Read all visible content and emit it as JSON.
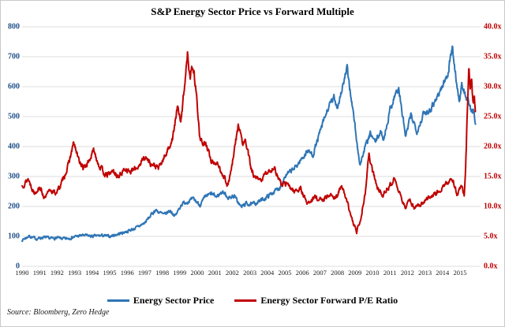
{
  "title": "S&P Energy Sector Price vs Forward Multiple",
  "source": "Source: Bloomberg, Zero Hedge",
  "legend": [
    {
      "label": "Energy Sector Price",
      "color": "#2E75B6"
    },
    {
      "label": "Energy Sector Forward P/E Ratio",
      "color": "#C00000"
    }
  ],
  "colors": {
    "left_axis_text": "#1F5088",
    "right_axis_text": "#C00000",
    "gridline": "#DCDCDC",
    "price_line": "#2E75B6",
    "pe_line": "#C00000"
  },
  "chart_data": {
    "type": "line",
    "title": "S&P Energy Sector Price vs Forward Multiple",
    "x_tick_labels": [
      "1990",
      "1991",
      "1992",
      "1993",
      "1994",
      "1995",
      "1996",
      "1997",
      "1998",
      "1999",
      "2000",
      "2001",
      "2002",
      "2003",
      "2004",
      "2005",
      "2006",
      "2007",
      "2008",
      "2009",
      "2010",
      "2011",
      "2012",
      "2013",
      "2014",
      "2015"
    ],
    "left_axis": {
      "tick_labels_top_to_bottom": [
        "800",
        "700",
        "600",
        "500",
        "400",
        "300",
        "200",
        "100",
        "0"
      ],
      "range": [
        0,
        800
      ]
    },
    "right_axis": {
      "tick_labels_top_to_bottom": [
        "40.0x",
        "35.0x",
        "30.0x",
        "25.0x",
        "20.0x",
        "15.0x",
        "10.0x",
        "5.0x",
        "0.0x"
      ],
      "range": [
        0,
        40
      ]
    },
    "x_range": [
      1990,
      2016
    ],
    "grid": "horizontal-only",
    "legend_position": "bottom-center",
    "series": [
      {
        "name": "Energy Sector Price",
        "axis": "left",
        "color": "#2E75B6",
        "points": [
          [
            1990.0,
            88
          ],
          [
            1990.4,
            101
          ],
          [
            1990.8,
            92
          ],
          [
            1991.2,
            97
          ],
          [
            1991.6,
            93
          ],
          [
            1992.0,
            95
          ],
          [
            1992.5,
            91
          ],
          [
            1993.0,
            99
          ],
          [
            1993.5,
            104
          ],
          [
            1994.0,
            100
          ],
          [
            1994.5,
            103
          ],
          [
            1995.0,
            100
          ],
          [
            1995.5,
            108
          ],
          [
            1996.0,
            117
          ],
          [
            1996.5,
            128
          ],
          [
            1997.0,
            145
          ],
          [
            1997.6,
            188
          ],
          [
            1998.1,
            172
          ],
          [
            1998.45,
            186
          ],
          [
            1998.75,
            168
          ],
          [
            1999.1,
            208
          ],
          [
            1999.5,
            218
          ],
          [
            1999.8,
            224
          ],
          [
            2000.15,
            205
          ],
          [
            2000.5,
            234
          ],
          [
            2000.8,
            242
          ],
          [
            2001.1,
            232
          ],
          [
            2001.45,
            250
          ],
          [
            2001.8,
            228
          ],
          [
            2002.1,
            236
          ],
          [
            2002.5,
            198
          ],
          [
            2002.8,
            210
          ],
          [
            2003.1,
            206
          ],
          [
            2003.5,
            216
          ],
          [
            2003.9,
            228
          ],
          [
            2004.3,
            246
          ],
          [
            2004.7,
            262
          ],
          [
            2005.0,
            300
          ],
          [
            2005.6,
            330
          ],
          [
            2006.0,
            362
          ],
          [
            2006.3,
            386
          ],
          [
            2006.6,
            372
          ],
          [
            2007.1,
            465
          ],
          [
            2007.5,
            532
          ],
          [
            2007.8,
            562
          ],
          [
            2008.0,
            532
          ],
          [
            2008.35,
            612
          ],
          [
            2008.55,
            660
          ],
          [
            2008.8,
            558
          ],
          [
            2009.0,
            470
          ],
          [
            2009.15,
            392
          ],
          [
            2009.3,
            340
          ],
          [
            2009.6,
            402
          ],
          [
            2009.9,
            442
          ],
          [
            2010.15,
            414
          ],
          [
            2010.45,
            448
          ],
          [
            2010.65,
            426
          ],
          [
            2011.0,
            522
          ],
          [
            2011.3,
            576
          ],
          [
            2011.5,
            590
          ],
          [
            2011.9,
            432
          ],
          [
            2012.2,
            506
          ],
          [
            2012.55,
            452
          ],
          [
            2012.9,
            506
          ],
          [
            2013.3,
            526
          ],
          [
            2013.6,
            556
          ],
          [
            2014.0,
            602
          ],
          [
            2014.3,
            642
          ],
          [
            2014.55,
            734
          ],
          [
            2014.75,
            640
          ],
          [
            2014.95,
            552
          ],
          [
            2015.1,
            600
          ],
          [
            2015.3,
            572
          ],
          [
            2015.5,
            546
          ],
          [
            2015.65,
            508
          ],
          [
            2015.75,
            522
          ],
          [
            2015.88,
            487
          ]
        ]
      },
      {
        "name": "Energy Sector Forward P/E Ratio",
        "axis": "right",
        "color": "#C00000",
        "points": [
          [
            1990.0,
            13.4
          ],
          [
            1990.35,
            14.6
          ],
          [
            1990.7,
            12.2
          ],
          [
            1991.0,
            13.3
          ],
          [
            1991.3,
            11.3
          ],
          [
            1991.6,
            12.8
          ],
          [
            1991.9,
            12.2
          ],
          [
            1992.2,
            13.5
          ],
          [
            1992.6,
            16.5
          ],
          [
            1992.95,
            20.6
          ],
          [
            1993.2,
            18.0
          ],
          [
            1993.5,
            16.3
          ],
          [
            1993.8,
            17.5
          ],
          [
            1994.1,
            19.4
          ],
          [
            1994.4,
            16.8
          ],
          [
            1994.8,
            15.1
          ],
          [
            1995.2,
            15.9
          ],
          [
            1995.5,
            14.9
          ],
          [
            1995.9,
            16.4
          ],
          [
            1996.2,
            15.7
          ],
          [
            1996.6,
            16.6
          ],
          [
            1997.0,
            18.3
          ],
          [
            1997.4,
            17.0
          ],
          [
            1997.8,
            16.4
          ],
          [
            1998.1,
            18.0
          ],
          [
            1998.4,
            20.0
          ],
          [
            1998.6,
            21.5
          ],
          [
            1998.9,
            27.0
          ],
          [
            1999.05,
            23.5
          ],
          [
            1999.45,
            35.8
          ],
          [
            1999.6,
            31.5
          ],
          [
            1999.75,
            33.8
          ],
          [
            1999.95,
            29.0
          ],
          [
            2000.15,
            21.0
          ],
          [
            2000.5,
            20.3
          ],
          [
            2000.8,
            17.6
          ],
          [
            2001.1,
            17.2
          ],
          [
            2001.45,
            15.5
          ],
          [
            2001.75,
            13.5
          ],
          [
            2002.0,
            17.0
          ],
          [
            2002.35,
            23.8
          ],
          [
            2002.6,
            20.3
          ],
          [
            2002.75,
            21.0
          ],
          [
            2003.1,
            16.0
          ],
          [
            2003.3,
            14.7
          ],
          [
            2003.6,
            14.3
          ],
          [
            2004.0,
            15.8
          ],
          [
            2004.4,
            16.4
          ],
          [
            2004.8,
            13.6
          ],
          [
            2005.1,
            13.8
          ],
          [
            2005.5,
            12.6
          ],
          [
            2005.9,
            12.9
          ],
          [
            2006.3,
            10.4
          ],
          [
            2006.7,
            11.6
          ],
          [
            2007.1,
            11.0
          ],
          [
            2007.5,
            11.9
          ],
          [
            2007.9,
            11.5
          ],
          [
            2008.25,
            13.4
          ],
          [
            2008.6,
            10.2
          ],
          [
            2008.9,
            7.2
          ],
          [
            2009.1,
            5.8
          ],
          [
            2009.35,
            8.3
          ],
          [
            2009.6,
            12.5
          ],
          [
            2009.8,
            18.8
          ],
          [
            2010.0,
            16.0
          ],
          [
            2010.25,
            13.3
          ],
          [
            2010.55,
            12.0
          ],
          [
            2010.9,
            12.9
          ],
          [
            2011.2,
            14.6
          ],
          [
            2011.55,
            12.3
          ],
          [
            2011.85,
            9.8
          ],
          [
            2012.1,
            11.0
          ],
          [
            2012.4,
            9.8
          ],
          [
            2012.75,
            10.4
          ],
          [
            2013.1,
            11.3
          ],
          [
            2013.5,
            12.0
          ],
          [
            2013.9,
            12.8
          ],
          [
            2014.2,
            13.6
          ],
          [
            2014.55,
            14.9
          ],
          [
            2014.85,
            11.9
          ],
          [
            2015.05,
            13.3
          ],
          [
            2015.25,
            12.1
          ],
          [
            2015.33,
            17.5
          ],
          [
            2015.5,
            33.6
          ],
          [
            2015.58,
            30.3
          ],
          [
            2015.65,
            31.2
          ],
          [
            2015.75,
            27.2
          ],
          [
            2015.82,
            28.3
          ],
          [
            2015.88,
            25.4
          ]
        ]
      }
    ]
  }
}
